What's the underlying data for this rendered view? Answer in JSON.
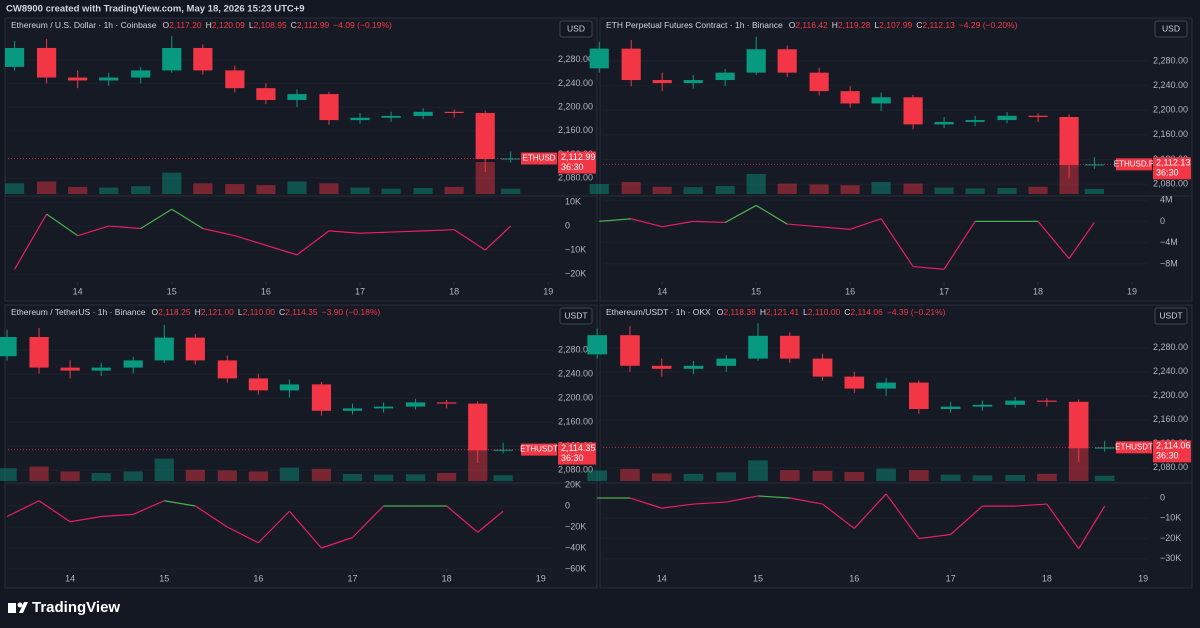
{
  "page": {
    "header": "CW8900 created with TradingView.com, May 18, 2026 15:23 UTC+9",
    "brand": "TradingView"
  },
  "chart_data": [
    {
      "type": "candlestick",
      "title": "Ethereum / U.S. Dollar · 1h · Coinbase",
      "ohlc": [
        {
          "name": "O",
          "value": 2117.2,
          "label": "2,117.20"
        },
        {
          "name": "H",
          "value": 2120.09,
          "label": "2,120.09"
        },
        {
          "name": "L",
          "value": 2108.95,
          "label": "2,108.95"
        },
        {
          "name": "C",
          "value": 2112.99,
          "label": "2,112.99"
        }
      ],
      "change_label": "−4.09 (−0.19%)",
      "currency": "USD",
      "symbol_tag": "ETHUSD",
      "last_price": {
        "value": 2112.99,
        "label": "2,112.99"
      },
      "countdown": "36:30",
      "x": [
        13.33,
        13.67,
        14.0,
        14.33,
        14.67,
        15.0,
        15.33,
        15.67,
        16.0,
        16.33,
        16.67,
        17.0,
        17.33,
        17.67,
        18.0,
        18.33,
        18.6
      ],
      "open": [
        2268,
        2300,
        2250,
        2245,
        2250,
        2262,
        2300,
        2262,
        2232,
        2212,
        2222,
        2178,
        2182,
        2185,
        2192,
        2190,
        2112
      ],
      "high": [
        2312,
        2315,
        2262,
        2258,
        2268,
        2320,
        2306,
        2270,
        2240,
        2230,
        2226,
        2190,
        2192,
        2198,
        2196,
        2194,
        2125
      ],
      "low": [
        2262,
        2240,
        2232,
        2236,
        2240,
        2258,
        2255,
        2225,
        2205,
        2200,
        2170,
        2172,
        2175,
        2180,
        2182,
        2090,
        2106
      ],
      "close": [
        2300,
        2250,
        2245,
        2250,
        2262,
        2300,
        2262,
        2232,
        2212,
        2222,
        2178,
        2182,
        2185,
        2192,
        2190,
        2112,
        2113
      ],
      "volume": [
        300,
        350,
        200,
        180,
        220,
        600,
        300,
        280,
        250,
        350,
        300,
        180,
        150,
        170,
        200,
        900,
        150
      ],
      "indicator": [
        -18000,
        5000,
        -4000,
        0,
        -1000,
        7000,
        -1000,
        -4000,
        -8000,
        -12000,
        -2000,
        -3000,
        -2500,
        -2000,
        -1500,
        -10000,
        0
      ],
      "xlim": [
        13.26,
        19.05
      ],
      "xticks": [
        14,
        15,
        16,
        17,
        18,
        19
      ],
      "ylim": [
        2053,
        2327
      ],
      "yticks": [
        {
          "value": 2280,
          "label": "2,280.00"
        },
        {
          "value": 2240,
          "label": "2,240.00"
        },
        {
          "value": 2200,
          "label": "2,200.00"
        },
        {
          "value": 2160,
          "label": "2,160.00"
        },
        {
          "value": 2120,
          "label": "2,120.00"
        },
        {
          "value": 2080,
          "label": "2,080.00"
        }
      ],
      "y2lim": [
        -23300,
        11700
      ],
      "y2ticks": [
        {
          "value": 10000,
          "label": "10K"
        },
        0,
        {
          "value": -10000,
          "label": "−10K"
        },
        {
          "value": -20000,
          "label": "−20K"
        }
      ],
      "colors": {
        "up": "#089981",
        "down": "#f23645",
        "indicator_positive": "#4caf50",
        "indicator_negative": "#e91e63"
      }
    },
    {
      "type": "candlestick",
      "title": "ETH Perpetual Futures Contract · 1h · Binance",
      "ohlc": [
        {
          "name": "O",
          "value": 2116.42,
          "label": "2,116.42"
        },
        {
          "name": "H",
          "value": 2119.28,
          "label": "2,119.28"
        },
        {
          "name": "L",
          "value": 2107.99,
          "label": "2,107.99"
        },
        {
          "name": "C",
          "value": 2112.13,
          "label": "2,112.13"
        }
      ],
      "change_label": "−4.29 (−0.20%)",
      "currency": "USD",
      "symbol_tag": "ETHUSD.P",
      "last_price": {
        "value": 2112.13,
        "label": "2,112.13"
      },
      "countdown": "36:30",
      "x": [
        13.33,
        13.67,
        14.0,
        14.33,
        14.67,
        15.0,
        15.33,
        15.67,
        16.0,
        16.33,
        16.67,
        17.0,
        17.33,
        17.67,
        18.0,
        18.33,
        18.6
      ],
      "open": [
        2268,
        2300,
        2249,
        2244,
        2249,
        2261,
        2299,
        2261,
        2231,
        2211,
        2221,
        2177,
        2181,
        2184,
        2191,
        2189,
        2111
      ],
      "high": [
        2311,
        2314,
        2261,
        2257,
        2267,
        2319,
        2305,
        2269,
        2239,
        2229,
        2225,
        2189,
        2191,
        2197,
        2195,
        2193,
        2124
      ],
      "low": [
        2261,
        2239,
        2231,
        2235,
        2239,
        2257,
        2254,
        2224,
        2204,
        2199,
        2169,
        2171,
        2174,
        2179,
        2181,
        2089,
        2105
      ],
      "close": [
        2300,
        2249,
        2244,
        2249,
        2261,
        2299,
        2261,
        2231,
        2211,
        2221,
        2177,
        2181,
        2184,
        2191,
        2189,
        2111,
        2112
      ],
      "volume": [
        250,
        300,
        180,
        170,
        200,
        500,
        260,
        240,
        220,
        300,
        260,
        160,
        140,
        150,
        180,
        800,
        130
      ],
      "indicator": [
        0,
        500000,
        -1000000,
        0,
        -200000,
        3000000,
        -500000,
        -1000000,
        -1500000,
        500000,
        -8500000,
        -9000000,
        0,
        0,
        0,
        -7000000,
        -200000
      ],
      "xlim": [
        13.37,
        19.17
      ],
      "xticks": [
        14,
        15,
        16,
        17,
        18,
        19
      ],
      "ylim": [
        2064,
        2327
      ],
      "yticks": [
        {
          "value": 2280,
          "label": "2,280.00"
        },
        {
          "value": 2240,
          "label": "2,240.00"
        },
        {
          "value": 2200,
          "label": "2,200.00"
        },
        {
          "value": 2160,
          "label": "2,160.00"
        },
        {
          "value": 2120,
          "label": "2,120.00"
        },
        {
          "value": 2080,
          "label": "2,080.00"
        }
      ],
      "y2lim": [
        -11400000,
        4400000
      ],
      "y2ticks": [
        {
          "value": 4000000,
          "label": "4M"
        },
        0,
        {
          "value": -4000000,
          "label": "−4M"
        },
        {
          "value": -8000000,
          "label": "−8M"
        }
      ],
      "colors": {
        "up": "#089981",
        "down": "#f23645",
        "indicator_positive": "#4caf50",
        "indicator_negative": "#e91e63"
      }
    },
    {
      "type": "candlestick",
      "title": "Ethereum / TetherUS · 1h · Binance",
      "ohlc": [
        {
          "name": "O",
          "value": 2118.25,
          "label": "2,118.25"
        },
        {
          "name": "H",
          "value": 2121.0,
          "label": "2,121.00"
        },
        {
          "name": "L",
          "value": 2110.0,
          "label": "2,110.00"
        },
        {
          "name": "C",
          "value": 2114.35,
          "label": "2,114.35"
        }
      ],
      "change_label": "−3.90 (−0.18%)",
      "currency": "USDT",
      "symbol_tag": "ETHUSDT",
      "last_price": {
        "value": 2114.35,
        "label": "2,114.35"
      },
      "countdown": "36:30",
      "x": [
        13.33,
        13.67,
        14.0,
        14.33,
        14.67,
        15.0,
        15.33,
        15.67,
        16.0,
        16.33,
        16.67,
        17.0,
        17.33,
        17.67,
        18.0,
        18.33,
        18.6
      ],
      "open": [
        2270,
        2302,
        2251,
        2246,
        2251,
        2263,
        2301,
        2263,
        2233,
        2213,
        2223,
        2179,
        2183,
        2186,
        2193,
        2191,
        2113
      ],
      "high": [
        2314,
        2317,
        2263,
        2259,
        2269,
        2322,
        2307,
        2271,
        2241,
        2231,
        2227,
        2191,
        2193,
        2199,
        2197,
        2195,
        2126
      ],
      "low": [
        2263,
        2241,
        2233,
        2237,
        2241,
        2259,
        2256,
        2226,
        2206,
        2201,
        2171,
        2173,
        2176,
        2181,
        2183,
        2092,
        2108
      ],
      "close": [
        2302,
        2251,
        2246,
        2251,
        2263,
        2301,
        2263,
        2233,
        2213,
        2223,
        2179,
        2183,
        2186,
        2193,
        2191,
        2113,
        2114
      ],
      "volume": [
        400,
        450,
        300,
        250,
        300,
        700,
        350,
        330,
        300,
        420,
        380,
        220,
        200,
        210,
        250,
        1000,
        180
      ],
      "indicator": [
        -10000,
        5000,
        -15000,
        -10000,
        -8000,
        5000,
        0,
        -20000,
        -35000,
        -5000,
        -40000,
        -30000,
        0,
        0,
        0,
        -25000,
        -5000
      ],
      "xlim": [
        13.34,
        19.13
      ],
      "xticks": [
        14,
        15,
        16,
        17,
        18,
        19
      ],
      "ylim": [
        2062,
        2332
      ],
      "yticks": [
        {
          "value": 2280,
          "label": "2,280.00"
        },
        {
          "value": 2240,
          "label": "2,240.00"
        },
        {
          "value": 2200,
          "label": "2,200.00"
        },
        {
          "value": 2160,
          "label": "2,160.00"
        },
        {
          "value": 2120,
          "label": "2,120.00"
        },
        {
          "value": 2080,
          "label": "2,080.00"
        }
      ],
      "y2lim": [
        -60000,
        20000
      ],
      "y2ticks": [
        {
          "value": 20000,
          "label": "20K"
        },
        0,
        {
          "value": -20000,
          "label": "−20K"
        },
        {
          "value": -40000,
          "label": "−40K"
        },
        {
          "value": -60000,
          "label": "−60K"
        }
      ],
      "colors": {
        "up": "#089981",
        "down": "#f23645",
        "indicator_positive": "#4caf50",
        "indicator_negative": "#e91e63"
      }
    },
    {
      "type": "candlestick",
      "title": "Ethereum/USDT · 1h · OKX",
      "ohlc": [
        {
          "name": "O",
          "value": 2118.38,
          "label": "2,118.38"
        },
        {
          "name": "H",
          "value": 2121.41,
          "label": "2,121.41"
        },
        {
          "name": "L",
          "value": 2110.0,
          "label": "2,110.00"
        },
        {
          "name": "C",
          "value": 2114.06,
          "label": "2,114.06"
        }
      ],
      "change_label": "−4.39 (−0.21%)",
      "currency": "USDT",
      "symbol_tag": "ETHUSDT",
      "last_price": {
        "value": 2114.06,
        "label": "2,114.06"
      },
      "countdown": "36:30",
      "x": [
        13.33,
        13.67,
        14.0,
        14.33,
        14.67,
        15.0,
        15.33,
        15.67,
        16.0,
        16.33,
        16.67,
        17.0,
        17.33,
        17.67,
        18.0,
        18.33,
        18.6
      ],
      "open": [
        2269,
        2301,
        2250,
        2245,
        2250,
        2262,
        2300,
        2262,
        2232,
        2212,
        2222,
        2178,
        2182,
        2185,
        2192,
        2190,
        2112
      ],
      "high": [
        2312,
        2316,
        2262,
        2258,
        2268,
        2321,
        2306,
        2270,
        2240,
        2230,
        2226,
        2190,
        2192,
        2198,
        2196,
        2194,
        2125
      ],
      "low": [
        2262,
        2240,
        2232,
        2236,
        2240,
        2258,
        2255,
        2225,
        2205,
        2200,
        2170,
        2172,
        2175,
        2180,
        2182,
        2090,
        2107
      ],
      "close": [
        2301,
        2250,
        2245,
        2250,
        2262,
        2300,
        2262,
        2232,
        2212,
        2222,
        2178,
        2182,
        2185,
        2192,
        2190,
        2112,
        2114
      ],
      "volume": [
        280,
        320,
        200,
        190,
        230,
        550,
        290,
        270,
        240,
        330,
        290,
        170,
        150,
        160,
        190,
        850,
        140
      ],
      "indicator": [
        0,
        0,
        -5000,
        -3000,
        -2000,
        1000,
        0,
        -3000,
        -15000,
        2000,
        -20000,
        -18000,
        -4000,
        -4000,
        -3000,
        -25000,
        -4000
      ],
      "xlim": [
        13.39,
        19.05
      ],
      "xticks": [
        14,
        15,
        16,
        17,
        18,
        19
      ],
      "ylim": [
        2058,
        2328
      ],
      "yticks": [
        {
          "value": 2280,
          "label": "2,280.00"
        },
        {
          "value": 2240,
          "label": "2,240.00"
        },
        {
          "value": 2200,
          "label": "2,200.00"
        },
        {
          "value": 2160,
          "label": "2,160.00"
        },
        {
          "value": 2120,
          "label": "2,120.00"
        },
        {
          "value": 2080,
          "label": "2,080.00"
        }
      ],
      "y2lim": [
        -35000,
        6400
      ],
      "y2ticks": [
        0,
        {
          "value": -10000,
          "label": "−10K"
        },
        {
          "value": -20000,
          "label": "−20K"
        },
        {
          "value": -30000,
          "label": "−30K"
        }
      ],
      "colors": {
        "up": "#089981",
        "down": "#f23645",
        "indicator_positive": "#4caf50",
        "indicator_negative": "#e91e63"
      }
    }
  ]
}
